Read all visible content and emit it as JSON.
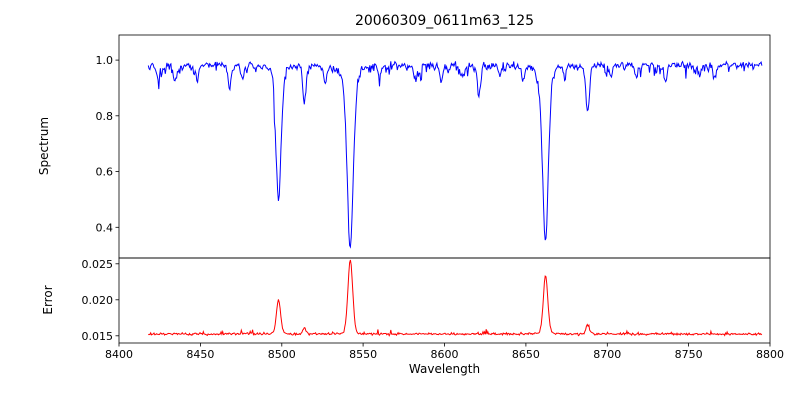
{
  "chart_data": {
    "type": "line",
    "title": "20060309_0611m63_125",
    "xlabel": "Wavelength",
    "x_axis_range": [
      8400,
      8800
    ],
    "x_data_range": [
      8418,
      8795
    ],
    "x_ticks": [
      8400,
      8450,
      8500,
      8550,
      8600,
      8650,
      8700,
      8750,
      8800
    ],
    "x_tick_labels": [
      "8400",
      "8450",
      "8500",
      "8550",
      "8600",
      "8650",
      "8700",
      "8750",
      "8800"
    ],
    "panels": [
      {
        "name": "spectrum",
        "ylabel": "Spectrum",
        "color": "#0000ff",
        "ylim": [
          0.29,
          1.09
        ],
        "yticks": [
          0.4,
          0.6,
          0.8,
          1.0
        ],
        "ytick_labels": [
          "0.4",
          "0.6",
          "0.8",
          "1.0"
        ],
        "continuum_level": 0.985,
        "absorption_lines": [
          {
            "center": 8498.0,
            "depth": 0.485,
            "width": 1.6,
            "lorentz": 0.3,
            "min_value": 0.5
          },
          {
            "center": 8542.1,
            "depth": 0.655,
            "width": 2.0,
            "lorentz": 0.3,
            "min_value": 0.33
          },
          {
            "center": 8662.1,
            "depth": 0.635,
            "width": 1.8,
            "lorentz": 0.3,
            "min_value": 0.35
          },
          {
            "center": 8424,
            "depth": 0.05,
            "width": 0.9
          },
          {
            "center": 8434,
            "depth": 0.06,
            "width": 0.9
          },
          {
            "center": 8448,
            "depth": 0.05,
            "width": 0.9
          },
          {
            "center": 8468,
            "depth": 0.08,
            "width": 1.0
          },
          {
            "center": 8476,
            "depth": 0.05,
            "width": 0.9
          },
          {
            "center": 8514,
            "depth": 0.12,
            "width": 1.0
          },
          {
            "center": 8527,
            "depth": 0.06,
            "width": 0.9
          },
          {
            "center": 8560,
            "depth": 0.04,
            "width": 0.9
          },
          {
            "center": 8582,
            "depth": 0.05,
            "width": 0.9
          },
          {
            "center": 8598,
            "depth": 0.06,
            "width": 0.9
          },
          {
            "center": 8611,
            "depth": 0.04,
            "width": 0.9
          },
          {
            "center": 8621,
            "depth": 0.08,
            "width": 1.0
          },
          {
            "center": 8634,
            "depth": 0.04,
            "width": 0.9
          },
          {
            "center": 8648,
            "depth": 0.05,
            "width": 0.9
          },
          {
            "center": 8674,
            "depth": 0.04,
            "width": 0.9
          },
          {
            "center": 8688,
            "depth": 0.17,
            "width": 1.1
          },
          {
            "center": 8702,
            "depth": 0.04,
            "width": 0.9
          },
          {
            "center": 8718,
            "depth": 0.05,
            "width": 0.9
          },
          {
            "center": 8736,
            "depth": 0.06,
            "width": 0.9
          },
          {
            "center": 8757,
            "depth": 0.04,
            "width": 0.9
          },
          {
            "center": 8766,
            "depth": 0.05,
            "width": 0.9
          }
        ]
      },
      {
        "name": "error",
        "ylabel": "Error",
        "color": "#ff0000",
        "ylim": [
          0.014,
          0.0258
        ],
        "yticks": [
          0.015,
          0.02,
          0.025
        ],
        "ytick_labels": [
          "0.015",
          "0.020",
          "0.025"
        ],
        "baseline_level": 0.0152,
        "peaks": [
          {
            "center": 8498.0,
            "height": 0.0047,
            "width": 1.3
          },
          {
            "center": 8542.1,
            "height": 0.0104,
            "width": 1.5
          },
          {
            "center": 8662.1,
            "height": 0.0082,
            "width": 1.4
          },
          {
            "center": 8514,
            "height": 0.0008,
            "width": 1.0
          },
          {
            "center": 8688,
            "height": 0.0014,
            "width": 1.0
          }
        ]
      }
    ]
  }
}
